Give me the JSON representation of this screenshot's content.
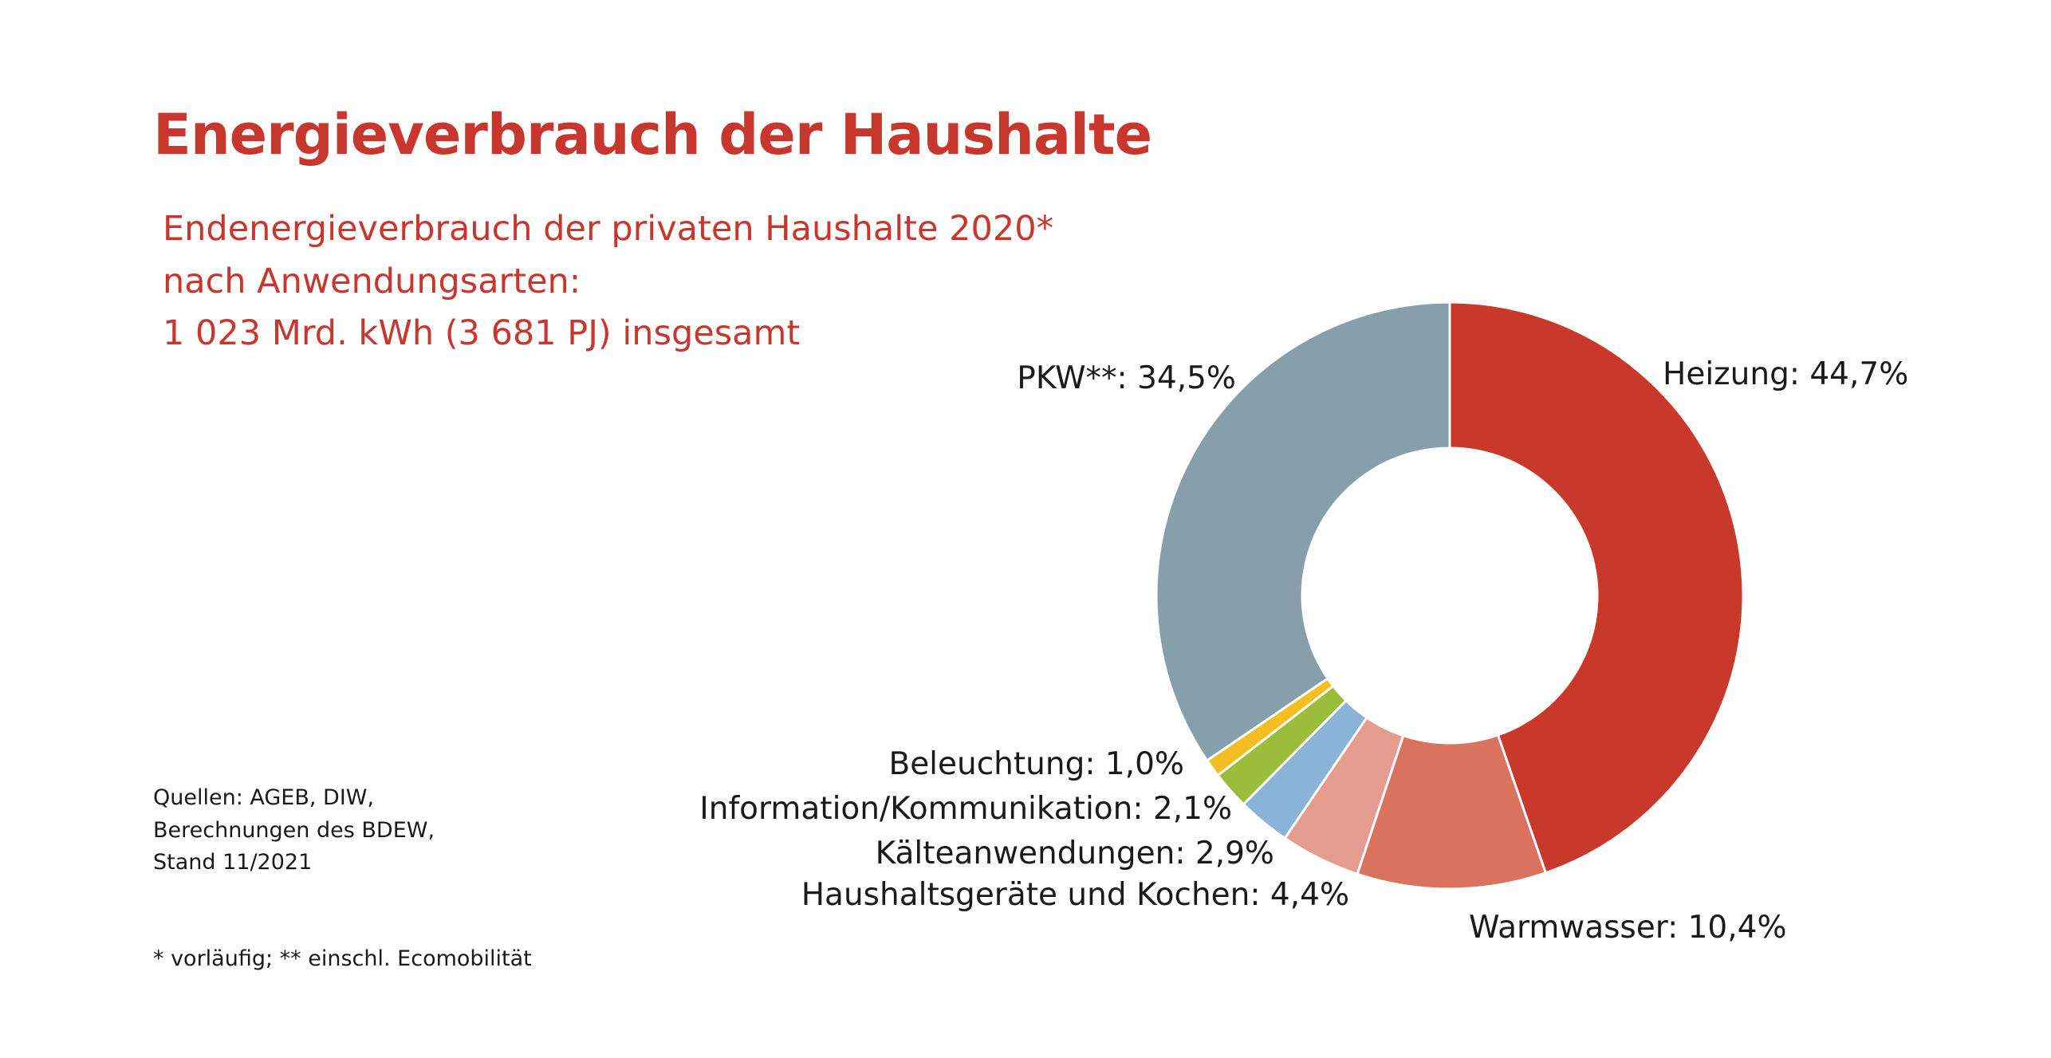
{
  "title": "Energieverbrauch der Haushalte",
  "subtitle": {
    "line1": "Endenergieverbrauch der privaten Haushalte 2020*",
    "line2": "nach Anwendungsarten:",
    "line3": "1 023 Mrd. kWh (3 681 PJ) insgesamt"
  },
  "sources": {
    "line1": "Quellen: AGEB, DIW,",
    "line2": "Berechnungen des BDEW,",
    "line3": "Stand 11/2021"
  },
  "footnote": "* vorläufig; ** einschl. Ecomobilität",
  "chart_data": {
    "type": "pie",
    "donut": true,
    "unit": "%",
    "slices": [
      {
        "name": "Heizung",
        "value": 44.7,
        "label": "Heizung: 44,7%",
        "color": "#c8392b"
      },
      {
        "name": "Warmwasser",
        "value": 10.4,
        "label": "Warmwasser: 10,4%",
        "color": "#d97360"
      },
      {
        "name": "Haushaltsgeräte und Kochen",
        "value": 4.4,
        "label": "Haushaltsgeräte und Kochen: 4,4%",
        "color": "#e39c8e"
      },
      {
        "name": "Kälteanwendungen",
        "value": 2.9,
        "label": "Kälteanwendungen: 2,9%",
        "color": "#8ab3d8"
      },
      {
        "name": "Information/Kommunikation",
        "value": 2.1,
        "label": "Information/Kommunikation: 2,1%",
        "color": "#9cbd3b"
      },
      {
        "name": "Beleuchtung",
        "value": 1.0,
        "label": "Beleuchtung: 1,0%",
        "color": "#f2be22"
      },
      {
        "name": "PKW**",
        "value": 34.5,
        "label": "PKW**: 34,5%",
        "color": "#879eab"
      }
    ]
  }
}
